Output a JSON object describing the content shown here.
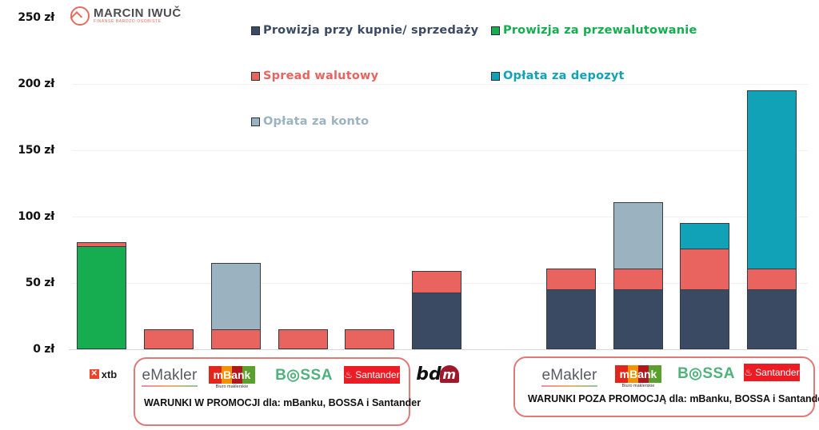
{
  "brand": {
    "name": "MARCIN IWUČ",
    "subtitle": "FINANSE BARDZO OSOBISTE",
    "accent": "#e56b5f"
  },
  "y_axis": {
    "ticks": [
      "250 zł",
      "200 zł",
      "150 zł",
      "100 zł",
      "50 zł",
      "0 zł"
    ]
  },
  "legend": [
    {
      "label": "Prowizja przy kupnie/ sprzedaży",
      "color": "#3b4a63",
      "text_color": "#3b4a63"
    },
    {
      "label": "Prowizja za  przewalutowanie",
      "color": "#15ad4f",
      "text_color": "#15ad4f"
    },
    {
      "label": "Spread walutowy",
      "color": "#e9645f",
      "text_color": "#e9645f"
    },
    {
      "label": "Opłata za depozyt",
      "color": "#12a2b8",
      "text_color": "#12a2b8"
    },
    {
      "label": "Opłata za  konto",
      "color": "#9bb3c0",
      "text_color": "#9bb3c0"
    }
  ],
  "groups": {
    "promo": {
      "caption": "WARUNKI W PROMOCJI dla: mBanku, BOSSA i Santander",
      "border_color": "#e07a78"
    },
    "nonpromo": {
      "caption": "WARUNKI POZA PROMOCJĄ dla: mBanku, BOSSA i Santander",
      "border_color": "#e07a78"
    }
  },
  "logos": {
    "xtb": "xtb",
    "xtb_mark": "✕",
    "emakler": "eMakler",
    "mbank": "mBank",
    "mbank_sub": "Biuro maklerskie",
    "bossa": "B◎SSA",
    "santander": "Santander",
    "santander_mark": "♨",
    "bdm_text": "bd",
    "bdm_mark": "m"
  },
  "chart_data": {
    "type": "bar",
    "stacked": true,
    "title": "",
    "xlabel": "",
    "ylabel": "",
    "ylim": [
      0,
      250
    ],
    "y_tick_labels": [
      "0 zł",
      "50 zł",
      "100 zł",
      "150 zł",
      "200 zł",
      "250 zł"
    ],
    "grid": true,
    "legend_position": "top",
    "categories": [
      "xtb",
      "eMakler (promocja)",
      "mBank (promocja)",
      "BOSSA (promocja)",
      "Santander (promocja)",
      "bdm",
      "eMakler (poza promocją)",
      "mBank (poza promocją)",
      "BOSSA (poza promocją)",
      "Santander (poza promocją)"
    ],
    "series": [
      {
        "name": "Prowizja przy kupnie/ sprzedaży",
        "color": "#3b4a63",
        "values": [
          0,
          0,
          0,
          0,
          0,
          43,
          45,
          45,
          45,
          45
        ]
      },
      {
        "name": "Prowizja za  przewalutowanie",
        "color": "#15ad4f",
        "values": [
          78,
          0,
          0,
          0,
          0,
          0,
          0,
          0,
          0,
          0
        ]
      },
      {
        "name": "Spread walutowy",
        "color": "#e9645f",
        "values": [
          3,
          15,
          15,
          15,
          15,
          16,
          16,
          16,
          31,
          16
        ]
      },
      {
        "name": "Opłata za depozyt",
        "color": "#12a2b8",
        "values": [
          0,
          0,
          0,
          0,
          0,
          0,
          0,
          0,
          19,
          134
        ]
      },
      {
        "name": "Opłata za  konto",
        "color": "#9bb3c0",
        "values": [
          0,
          0,
          50,
          0,
          0,
          0,
          0,
          50,
          0,
          0
        ]
      }
    ],
    "totals": [
      81,
      15,
      65,
      15,
      15,
      59,
      61,
      111,
      95,
      195
    ]
  }
}
